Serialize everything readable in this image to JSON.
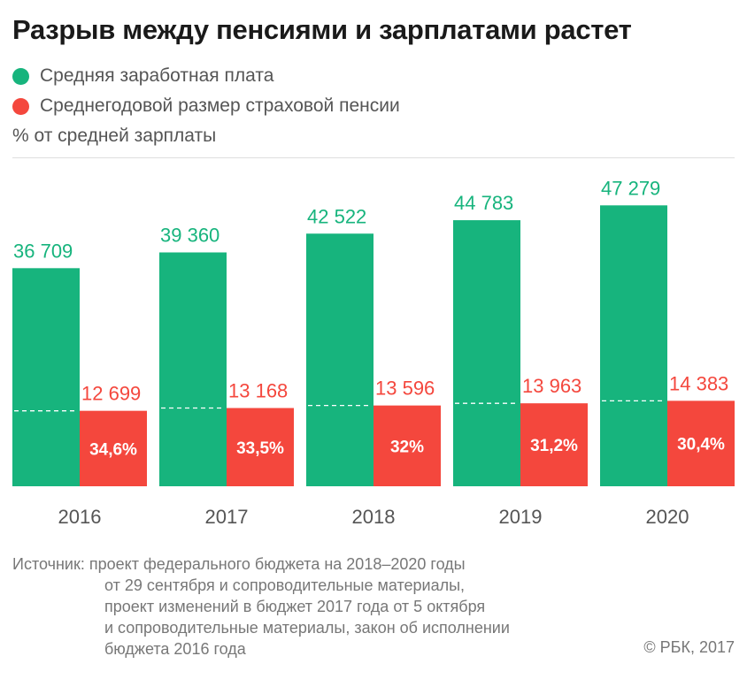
{
  "title": "Разрыв между пенсиями и зарплатами растет",
  "legend": [
    {
      "label": "Средняя заработная плата",
      "color": "#17b47d"
    },
    {
      "label": "Среднегодовой размер страховой пенсии",
      "color": "#f4473d"
    }
  ],
  "unit_note": "% от средней зарплаты",
  "source": {
    "lines": [
      "Источник: проект федерального бюджета на 2018–2020 годы",
      "от 29 сентября и сопроводительные материалы,",
      "проект изменений в бюджет 2017 года от 5 октября",
      "и сопроводительные материалы, закон об исполнении",
      "бюджета 2016 года"
    ]
  },
  "credit": "© РБК, 2017",
  "colors": {
    "green": "#17b47d",
    "red": "#f4473d",
    "tick": "#555555"
  },
  "chart_data": {
    "type": "bar",
    "categories": [
      "2016",
      "2017",
      "2018",
      "2019",
      "2020"
    ],
    "series": [
      {
        "name": "Средняя заработная плата",
        "values": [
          36709,
          39360,
          42522,
          44783,
          47279
        ],
        "value_labels": [
          "36 709",
          "39 360",
          "42 522",
          "44 783",
          "47 279"
        ]
      },
      {
        "name": "Среднегодовой размер страховой пенсии",
        "values": [
          12699,
          13168,
          13596,
          13963,
          14383
        ],
        "value_labels": [
          "12 699",
          "13 168",
          "13 596",
          "13 963",
          "14 383"
        ]
      }
    ],
    "ratio_labels": [
      "34,6%",
      "33,5%",
      "32%",
      "31,2%",
      "30,4%"
    ],
    "ratio_values": [
      34.6,
      33.5,
      32,
      31.2,
      30.4
    ],
    "ylim": [
      0,
      50000
    ]
  }
}
